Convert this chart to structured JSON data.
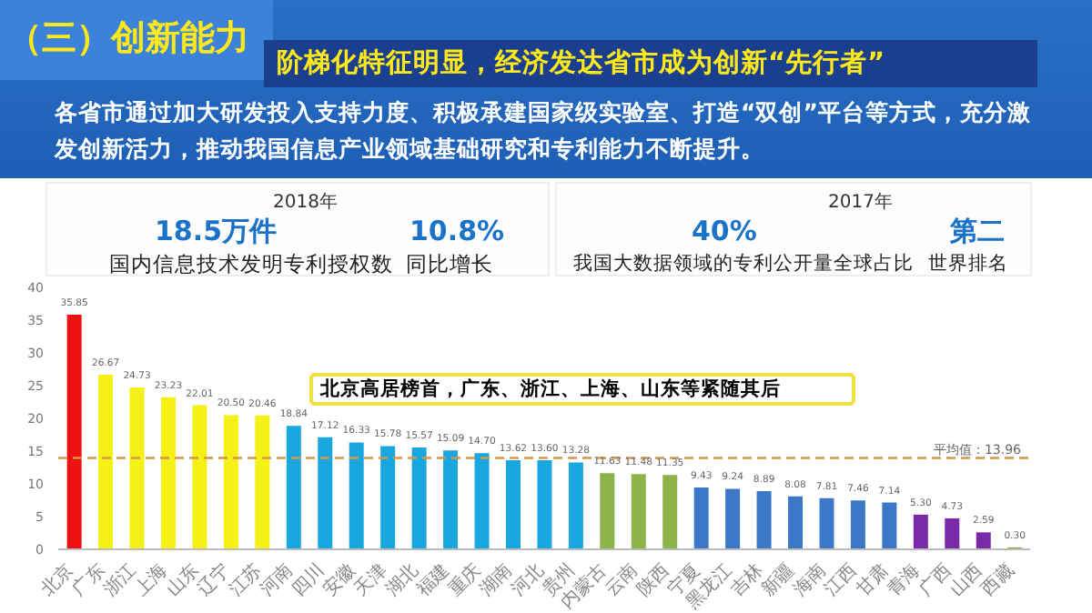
{
  "chart_data": {
    "type": "bar",
    "title": "（三）创新能力",
    "subtitle": "阶梯化特征明显，经济发达省市成为创新“先行者”",
    "annotations": [
      "各省市通过加大研发投入支持力度、积极承建国家级实验室、打造“双创”平台等方式，充分激发创新活力，推动我国信息产业领域基础研究和专利能力不断提升。",
      "2018年",
      "18.5万件",
      "国内信息技术发明专利授权数",
      "10.8%",
      "同比增长",
      "2017年",
      "40%",
      "我国大数据领域的专利公开量全球占比",
      "第二",
      "世界排名",
      "北京高居榜首，广东、浙江、上海、山东等紧随其后"
    ],
    "categories": [
      "北京",
      "广东",
      "浙江",
      "上海",
      "山东",
      "辽宁",
      "江苏",
      "河南",
      "四川",
      "安徽",
      "天津",
      "湖北",
      "福建",
      "重庆",
      "湖南",
      "河北",
      "贵州",
      "内蒙古",
      "云南",
      "陕西",
      "宁夏",
      "黑龙江",
      "吉林",
      "新疆",
      "海南",
      "江西",
      "甘肃",
      "青海",
      "广西",
      "山西",
      "西藏"
    ],
    "values": [
      35.85,
      26.67,
      24.73,
      23.23,
      22.01,
      20.5,
      20.46,
      18.84,
      17.12,
      16.33,
      15.78,
      15.57,
      15.09,
      14.7,
      13.62,
      13.6,
      13.28,
      11.63,
      11.48,
      11.35,
      9.43,
      9.24,
      8.89,
      8.08,
      7.81,
      7.46,
      7.14,
      5.3,
      4.73,
      2.59,
      0.3
    ],
    "colors": [
      "#ee1111",
      "#f5f015",
      "#f5f015",
      "#f5f015",
      "#f5f015",
      "#f5f015",
      "#f5f015",
      "#1aa7e0",
      "#1aa7e0",
      "#1aa7e0",
      "#1aa7e0",
      "#1aa7e0",
      "#1aa7e0",
      "#1aa7e0",
      "#1aa7e0",
      "#1aa7e0",
      "#1aa7e0",
      "#8db44a",
      "#8db44a",
      "#8db44a",
      "#3c78c8",
      "#3c78c8",
      "#3c78c8",
      "#3c78c8",
      "#3c78c8",
      "#3c78c8",
      "#3c78c8",
      "#7a2aa8",
      "#7a2aa8",
      "#7a2aa8",
      "#9aa040"
    ],
    "ylim": [
      0,
      40
    ],
    "yticks": [
      0,
      5,
      10,
      15,
      20,
      25,
      30,
      35,
      40
    ],
    "ref_lines": [
      {
        "axis": "y",
        "value": 13.96,
        "label": "平均值：13.96",
        "color": "#d9954a",
        "line_style": "dashed"
      }
    ],
    "value_labels": [
      "35.85",
      "26.67",
      "24.73",
      "23.23",
      "22.01",
      "20.50",
      "20.46",
      "18.84",
      "17.12",
      "16.33",
      "15.78",
      "15.57",
      "15.09",
      "14.70",
      "13.62",
      "13.60",
      "13.28",
      "11.63",
      "11.48",
      "11.35",
      "9.43",
      "9.24",
      "8.89",
      "8.08",
      "7.81",
      "7.46",
      "7.14",
      "5.30",
      "4.73",
      "2.59",
      "0.30"
    ]
  }
}
